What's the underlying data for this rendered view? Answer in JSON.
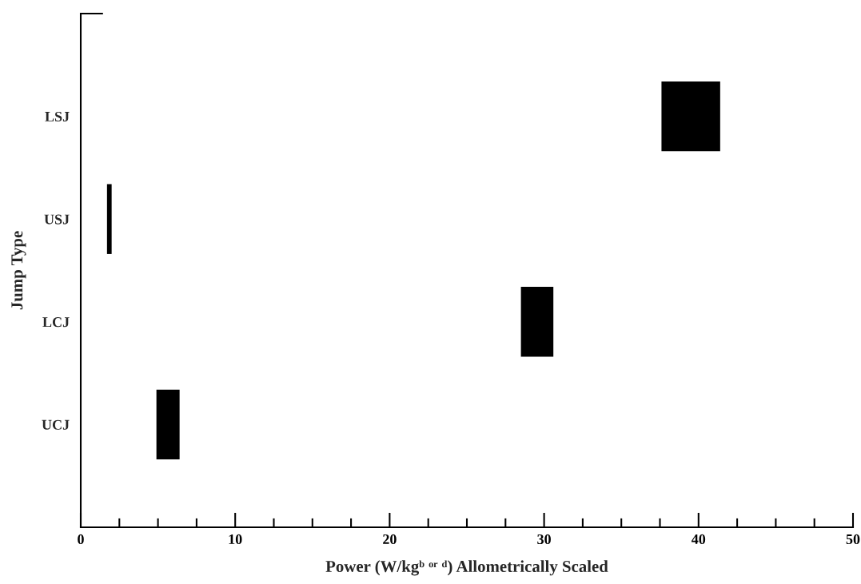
{
  "chart_data": {
    "type": "bar",
    "orientation": "horizontal",
    "categories": [
      "LSJ",
      "USJ",
      "LCJ",
      "UCJ"
    ],
    "base": [
      37.6,
      1.7,
      28.5,
      4.9
    ],
    "values": [
      3.8,
      0.3,
      2.1,
      1.5
    ],
    "color": "#000000",
    "xlabel": "Power (W/kgᵇ ᵒʳ ᵈ) Allometrically Scaled",
    "ylabel": "Jump Type",
    "xlim": [
      0,
      50
    ],
    "xticks": [
      0,
      {
        "value": 2.5,
        "label": null
      },
      {
        "value": 5,
        "label": null
      },
      {
        "value": 7.5,
        "label": null
      },
      10,
      {
        "value": 12.5,
        "label": null
      },
      {
        "value": 15,
        "label": null
      },
      {
        "value": 17.5,
        "label": null
      },
      20,
      {
        "value": 22.5,
        "label": null
      },
      {
        "value": 25,
        "label": null
      },
      {
        "value": 27.5,
        "label": null
      },
      30,
      {
        "value": 32.5,
        "label": null
      },
      {
        "value": 35,
        "label": null
      },
      {
        "value": 37.5,
        "label": null
      },
      40,
      {
        "value": 42.5,
        "label": null
      },
      {
        "value": 45,
        "label": null
      },
      {
        "value": 47.5,
        "label": null
      },
      50
    ],
    "grid": false,
    "legend": false
  }
}
